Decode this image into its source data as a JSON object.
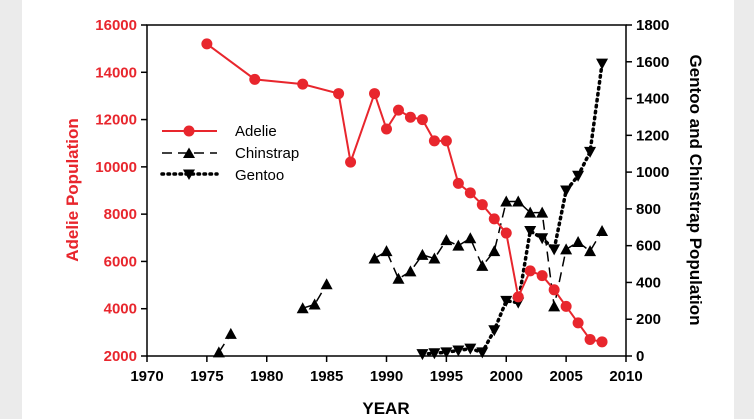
{
  "chart_data": {
    "type": "line",
    "xlabel": "YEAR",
    "ylabel_left": "Adelie Population",
    "ylabel_right": "Gentoo and Chinstrap Population",
    "xlim": [
      1970,
      2010
    ],
    "ylim_left": [
      2000,
      16000
    ],
    "ylim_right": [
      0,
      1800
    ],
    "x_ticks": [
      "1970",
      "1975",
      "1980",
      "1985",
      "1990",
      "1995",
      "2000",
      "2005",
      "2010"
    ],
    "y_ticks_left": [
      "2000",
      "4000",
      "6000",
      "8000",
      "10000",
      "12000",
      "14000",
      "16000"
    ],
    "y_ticks_right": [
      "0",
      "200",
      "400",
      "600",
      "800",
      "1000",
      "1200",
      "1400",
      "1600",
      "1800"
    ],
    "legend_position": "upper-left",
    "colors": {
      "adelie": "#e8262d",
      "chinstrap": "#000000",
      "gentoo": "#000000"
    },
    "series": [
      {
        "name": "Adelie",
        "axis": "left",
        "marker": "circle",
        "line": "solid",
        "x": [
          1975,
          1979,
          1983,
          1986,
          1987,
          1989,
          1990,
          1991,
          1992,
          1993,
          1994,
          1995,
          1996,
          1997,
          1998,
          1999,
          2000,
          2001,
          2002,
          2003,
          2004,
          2005,
          2006,
          2007,
          2008
        ],
        "y": [
          15200,
          13700,
          13500,
          13100,
          10200,
          13100,
          11600,
          12400,
          12100,
          12000,
          11100,
          11100,
          9300,
          8900,
          8400,
          7800,
          7200,
          4500,
          5600,
          5400,
          4800,
          4100,
          3400,
          2700,
          2600
        ]
      },
      {
        "name": "Chinstrap",
        "axis": "right",
        "marker": "triangle-up",
        "line": "dashed",
        "segments": [
          {
            "x": [
              1976,
              1977
            ],
            "y": [
              20,
              120
            ]
          },
          {
            "x": [
              1983,
              1984,
              1985
            ],
            "y": [
              260,
              280,
              390
            ]
          },
          {
            "x": [
              1989,
              1990,
              1991,
              1992,
              1993,
              1994,
              1995,
              1996,
              1997,
              1998,
              1999,
              2000,
              2001,
              2002,
              2003,
              2004,
              2005,
              2006,
              2007,
              2008
            ],
            "y": [
              530,
              570,
              420,
              460,
              550,
              530,
              630,
              600,
              640,
              490,
              570,
              840,
              840,
              780,
              780,
              270,
              580,
              620,
              570,
              680
            ]
          }
        ]
      },
      {
        "name": "Gentoo",
        "axis": "right",
        "marker": "triangle-down",
        "line": "dotted",
        "x": [
          1993,
          1994,
          1995,
          1996,
          1997,
          1998,
          1999,
          2000,
          2001,
          2002,
          2003,
          2004,
          2005,
          2006,
          2007,
          2008
        ],
        "y": [
          10,
          15,
          20,
          30,
          40,
          20,
          140,
          300,
          290,
          680,
          640,
          580,
          900,
          980,
          1110,
          1590
        ]
      }
    ]
  }
}
